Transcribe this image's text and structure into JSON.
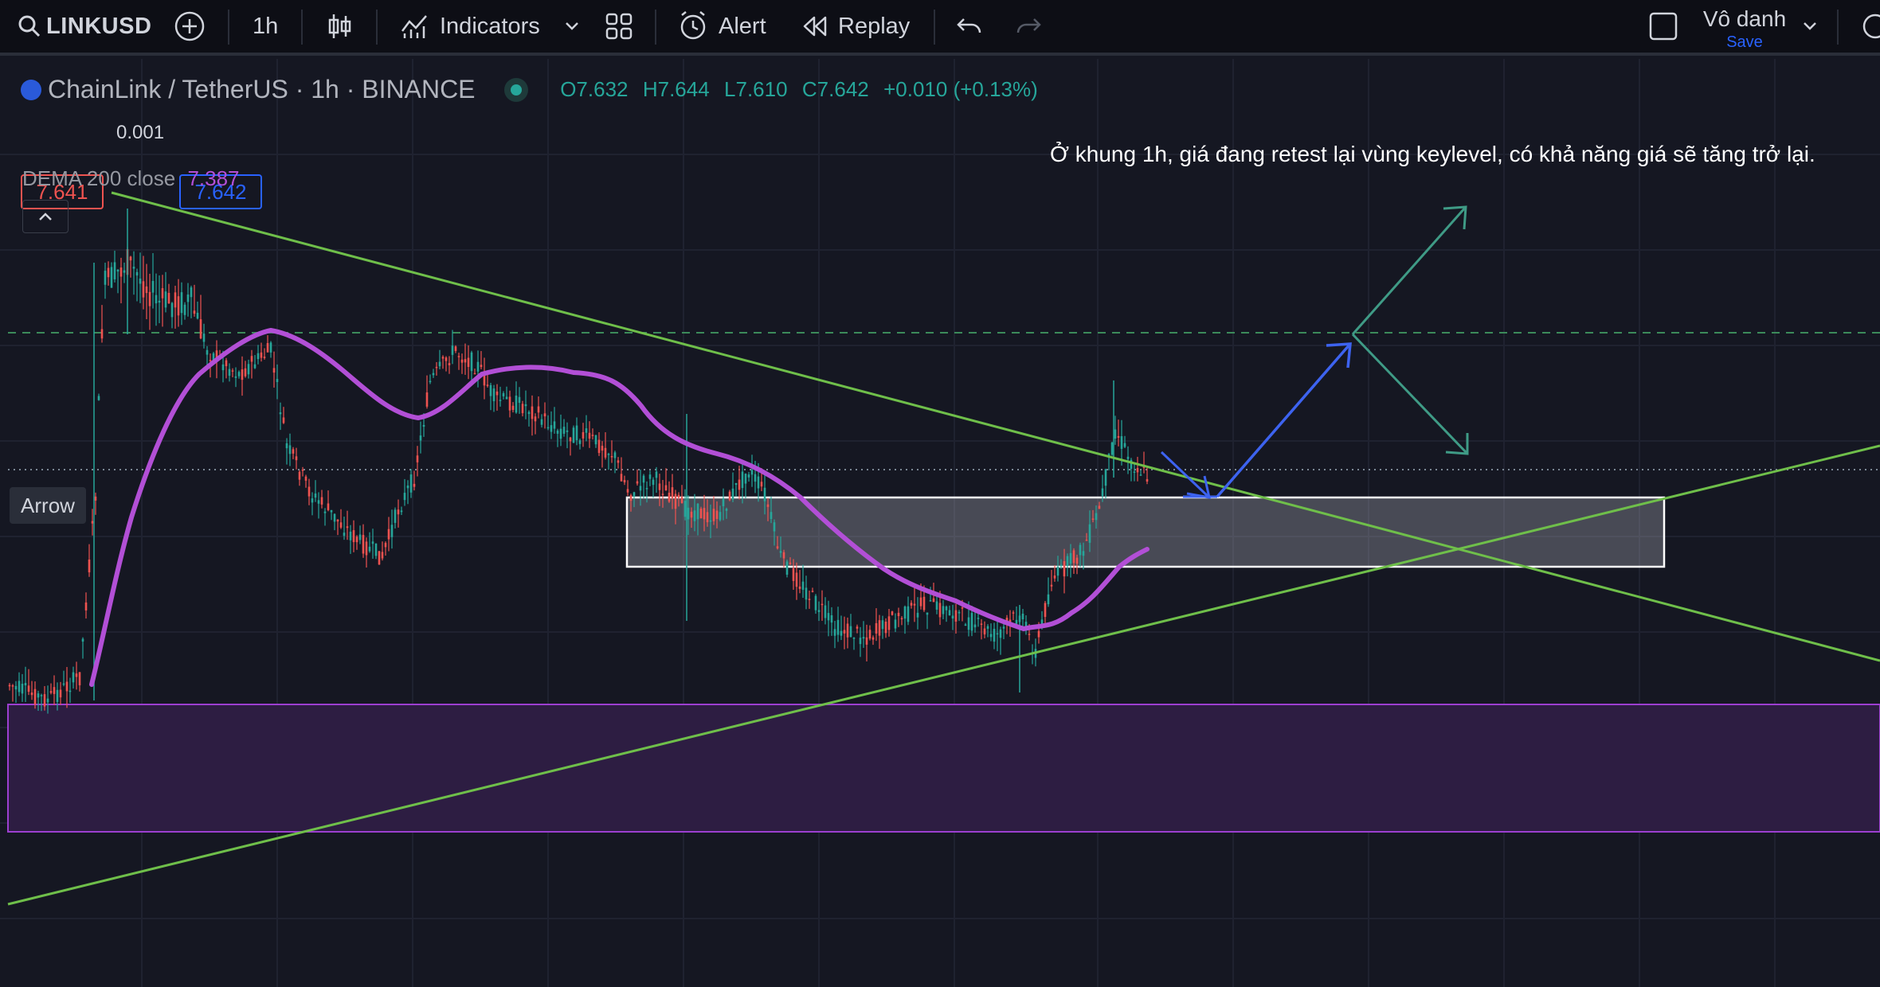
{
  "toolbar": {
    "symbol": "LINKUSD",
    "interval": "1h",
    "indicators_label": "Indicators",
    "alert_label": "Alert",
    "replay_label": "Replay",
    "layout_name": "Vô danh",
    "save_label": "Save"
  },
  "legend": {
    "title": "ChainLink / TetherUS · 1h · BINANCE",
    "open": "O7.632",
    "high": "H7.644",
    "low": "L7.610",
    "close": "C7.642",
    "change": "+0.010 (+0.13%)",
    "bid": "7.641",
    "spread": "0.001",
    "ask": "7.642",
    "indicator_name": "DEMA 200 close",
    "indicator_value": "7.387"
  },
  "annotation": "Ở khung 1h, giá đang retest lại vùng keylevel, có khả năng giá sẽ tăng trở lại.",
  "tooltip": "Arrow",
  "colors": {
    "background": "#151722",
    "trendline": "#6fbf4a",
    "dema": "#b24fd6",
    "purple_zone": "#2d1d42",
    "blue_arrow": "#3d63f0",
    "teal_arrow": "#3f9b86",
    "up_candle": "#26a69a",
    "down_candle": "#ef5350"
  },
  "icons": [
    "search-icon",
    "add-symbol-icon",
    "candles-icon",
    "indicators-icon",
    "chevron-down-icon",
    "layout-grid-icon",
    "alert-icon",
    "replay-icon",
    "undo-icon",
    "redo-icon",
    "fullscreen-icon",
    "chevron-up-icon"
  ]
}
